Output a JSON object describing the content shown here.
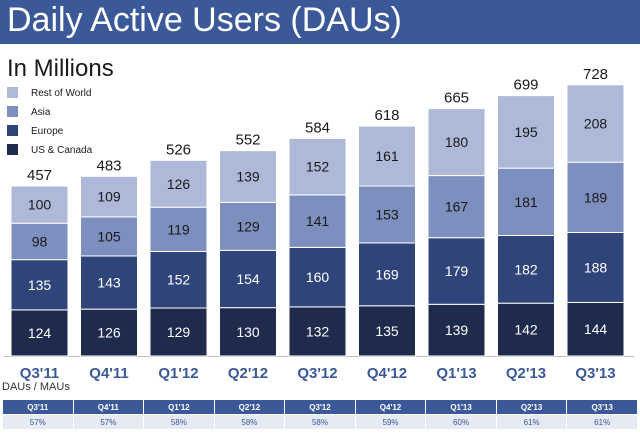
{
  "header": {
    "title": "Daily Active Users (DAUs)"
  },
  "chart_data": {
    "type": "stacked-bar",
    "title": "Daily Active Users (DAUs)",
    "subtitle": "In Millions",
    "categories": [
      "Q3'11",
      "Q4'11",
      "Q1'12",
      "Q2'12",
      "Q3'12",
      "Q4'12",
      "Q1'13",
      "Q2'13",
      "Q3'13"
    ],
    "series": [
      {
        "name": "US & Canada",
        "color": "#1f2b4d",
        "values": [
          124,
          126,
          129,
          130,
          132,
          135,
          139,
          142,
          144
        ]
      },
      {
        "name": "Europe",
        "color": "#2f4579",
        "values": [
          135,
          143,
          152,
          154,
          160,
          169,
          179,
          182,
          188
        ]
      },
      {
        "name": "Asia",
        "color": "#7d8fbf",
        "values": [
          98,
          105,
          119,
          129,
          141,
          153,
          167,
          181,
          189
        ]
      },
      {
        "name": "Rest of World",
        "color": "#aeb9d9",
        "values": [
          100,
          109,
          126,
          139,
          152,
          161,
          180,
          195,
          208
        ]
      }
    ],
    "totals": [
      457,
      483,
      526,
      552,
      584,
      618,
      665,
      699,
      728
    ],
    "legend": [
      "Rest of World",
      "Asia",
      "Europe",
      "US & Canada"
    ],
    "legend_position": "top-left",
    "ylim": [
      0,
      760
    ]
  },
  "ratio_table": {
    "label": "DAUs / MAUs",
    "quarters": [
      "Q3'11",
      "Q4'11",
      "Q1'12",
      "Q2'12",
      "Q3'12",
      "Q4'12",
      "Q1'13",
      "Q2'13",
      "Q3'13"
    ],
    "values": [
      "57%",
      "57%",
      "58%",
      "58%",
      "58%",
      "59%",
      "60%",
      "61%",
      "61%"
    ]
  }
}
